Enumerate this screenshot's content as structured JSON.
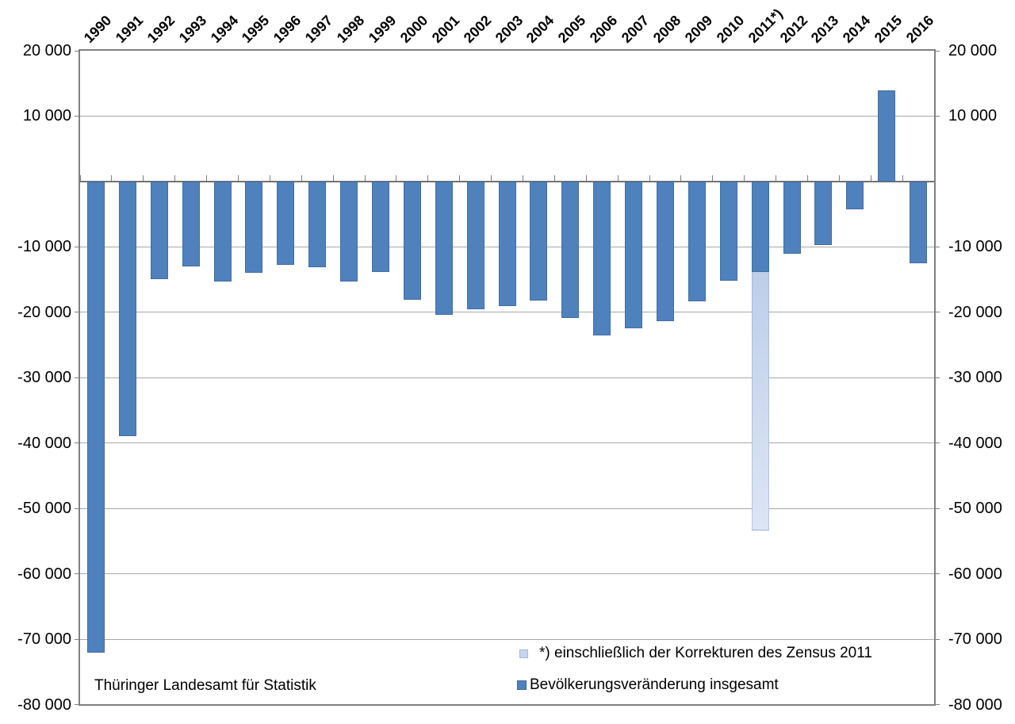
{
  "chart_data": {
    "type": "bar",
    "title": "",
    "categories": [
      "1990",
      "1991",
      "1992",
      "1993",
      "1994",
      "1995",
      "1996",
      "1997",
      "1998",
      "1999",
      "2000",
      "2001",
      "2002",
      "2003",
      "2004",
      "2005",
      "2006",
      "2007",
      "2008",
      "2009",
      "2010",
      "2011*)",
      "2012",
      "2013",
      "2014",
      "2015",
      "2016"
    ],
    "series": [
      {
        "name": "Bevölkerungsveränderung insgesamt",
        "color": "#4f81bd",
        "values": [
          -72000,
          -39000,
          -14900,
          -13000,
          -15300,
          -14000,
          -12800,
          -13100,
          -15300,
          -13800,
          -18100,
          -20400,
          -19500,
          -19100,
          -18200,
          -20900,
          -23600,
          -22400,
          -21400,
          -18300,
          -15200,
          -13800,
          -11100,
          -9700,
          -4300,
          13900,
          -12500
        ]
      },
      {
        "name": "*) einschließlich der Korrekturen des Zensus 2011",
        "color": "#c7d6ee",
        "values": [
          null,
          null,
          null,
          null,
          null,
          null,
          null,
          null,
          null,
          null,
          null,
          null,
          null,
          null,
          null,
          null,
          null,
          null,
          null,
          null,
          null,
          -53400,
          null,
          null,
          null,
          null,
          null
        ]
      }
    ],
    "ylim": [
      -80000,
      20000
    ],
    "ytick_step": 10000,
    "yticks": [
      {
        "value": 20000,
        "label": "20 000"
      },
      {
        "value": 10000,
        "label": "10 000"
      },
      {
        "value": -10000,
        "label": "-10 000"
      },
      {
        "value": -20000,
        "label": "-20 000"
      },
      {
        "value": -30000,
        "label": "-30 000"
      },
      {
        "value": -40000,
        "label": "-40 000"
      },
      {
        "value": -50000,
        "label": "-50 000"
      },
      {
        "value": -60000,
        "label": "-60 000"
      },
      {
        "value": -70000,
        "label": "-70 000"
      },
      {
        "value": -80000,
        "label": "-80 000"
      }
    ],
    "grid": true,
    "legend_position": "inside-bottom-right",
    "xlabel": "",
    "ylabel": ""
  },
  "legend": {
    "items": [
      {
        "swatch": "light-blue-square",
        "label": "*) einschließlich der Korrekturen des Zensus 2011"
      },
      {
        "swatch": "dark-blue-square",
        "label": "Bevölkerungsveränderung insgesamt"
      }
    ]
  },
  "source_note": "Thüringer Landesamt für Statistik",
  "colors": {
    "bar_main": "#4f81bd",
    "bar_census_top": "#b3c6e6",
    "bar_census_bottom": "#dce5f5",
    "gridline": "#a8a8a8",
    "axis": "#7f7f7f",
    "zero_line": "#737373",
    "background": "#ffffff"
  }
}
